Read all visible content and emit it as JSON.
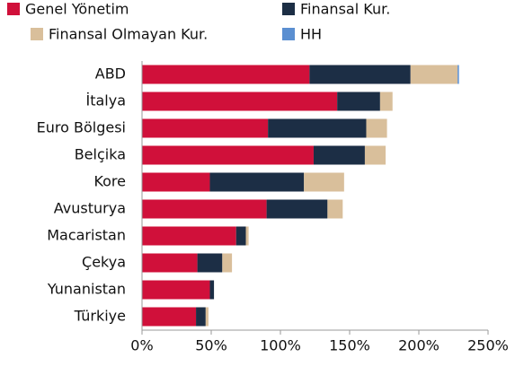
{
  "chart_data": {
    "type": "stacked-bar-horizontal",
    "categories": [
      "ABD",
      "İtalya",
      "Euro Bölgesi",
      "Belçika",
      "Kore",
      "Avusturya",
      "Macaristan",
      "Çekya",
      "Yunanistan",
      "Türkiye"
    ],
    "series": [
      {
        "name": "Genel Yönetim",
        "color": "#d0103a",
        "values": [
          121,
          141,
          91,
          124,
          49,
          90,
          68,
          40,
          49,
          39
        ]
      },
      {
        "name": "Finansal Kur.",
        "color": "#1c2e45",
        "values": [
          73,
          31,
          71,
          37,
          68,
          44,
          7,
          18,
          3,
          7
        ]
      },
      {
        "name": "Finansal Olmayan Kur.",
        "color": "#d9bf9b",
        "values": [
          34,
          9,
          15,
          15,
          29,
          11,
          2,
          7,
          0,
          2
        ]
      },
      {
        "name": "HH",
        "color": "#5b8fd1",
        "values": [
          1,
          0,
          0,
          0,
          0,
          0,
          0,
          0,
          0,
          0
        ]
      }
    ],
    "xlim": [
      0,
      250
    ],
    "xticks": [
      {
        "value": 0,
        "label": "0%"
      },
      {
        "value": 50,
        "label": "50%"
      },
      {
        "value": 100,
        "label": "100%"
      },
      {
        "value": 150,
        "label": "150%"
      },
      {
        "value": 200,
        "label": "200%"
      },
      {
        "value": 250,
        "label": "250%"
      }
    ],
    "legend": "top"
  }
}
